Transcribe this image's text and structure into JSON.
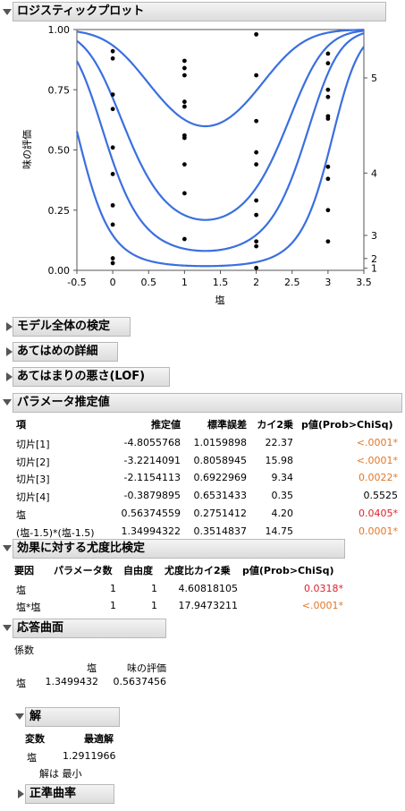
{
  "logistic": {
    "title": "ロジスティックプロット",
    "ylabel": "味の評価",
    "xlabel": "塩"
  },
  "chart_data": {
    "type": "scatter",
    "title": "",
    "xlabel": "塩",
    "ylabel": "味の評価",
    "xlim": [
      -0.5,
      3.5
    ],
    "ylim": [
      0,
      1
    ],
    "x_ticks": [
      "-0.5",
      "0",
      "0.5",
      "1",
      "1.5",
      "2",
      "2.5",
      "3",
      "3.5"
    ],
    "y_ticks": [
      "0.00",
      "0.25",
      "0.50",
      "0.75",
      "1.00"
    ],
    "right_axis_labels": [
      "1",
      "2",
      "3",
      "4",
      "5"
    ],
    "points": [
      {
        "x": 0,
        "y": 0.91
      },
      {
        "x": 0,
        "y": 0.88
      },
      {
        "x": 0,
        "y": 0.73
      },
      {
        "x": 0,
        "y": 0.67
      },
      {
        "x": 0,
        "y": 0.51
      },
      {
        "x": 0,
        "y": 0.4
      },
      {
        "x": 0,
        "y": 0.27
      },
      {
        "x": 0,
        "y": 0.19
      },
      {
        "x": 0,
        "y": 0.05
      },
      {
        "x": 0,
        "y": 0.03
      },
      {
        "x": 1,
        "y": 0.87
      },
      {
        "x": 1,
        "y": 0.84
      },
      {
        "x": 1,
        "y": 0.81
      },
      {
        "x": 1,
        "y": 0.7
      },
      {
        "x": 1,
        "y": 0.68
      },
      {
        "x": 1,
        "y": 0.56
      },
      {
        "x": 1,
        "y": 0.55
      },
      {
        "x": 1,
        "y": 0.44
      },
      {
        "x": 1,
        "y": 0.32
      },
      {
        "x": 1,
        "y": 0.13
      },
      {
        "x": 2,
        "y": 0.98
      },
      {
        "x": 2,
        "y": 0.81
      },
      {
        "x": 2,
        "y": 0.62
      },
      {
        "x": 2,
        "y": 0.49
      },
      {
        "x": 2,
        "y": 0.44
      },
      {
        "x": 2,
        "y": 0.29
      },
      {
        "x": 2,
        "y": 0.23
      },
      {
        "x": 2,
        "y": 0.12
      },
      {
        "x": 2,
        "y": 0.1
      },
      {
        "x": 2,
        "y": 0.01
      },
      {
        "x": 3,
        "y": 0.9
      },
      {
        "x": 3,
        "y": 0.86
      },
      {
        "x": 3,
        "y": 0.75
      },
      {
        "x": 3,
        "y": 0.72
      },
      {
        "x": 3,
        "y": 0.64
      },
      {
        "x": 3,
        "y": 0.63
      },
      {
        "x": 3,
        "y": 0.43
      },
      {
        "x": 3,
        "y": 0.38
      },
      {
        "x": 3,
        "y": 0.25
      },
      {
        "x": 3,
        "y": 0.12
      }
    ],
    "model": {
      "intercepts": [
        -4.8055768,
        -3.2214091,
        -2.1154113,
        -0.3879895
      ],
      "salt": 0.56374559,
      "quadratic": 1.34994322,
      "center": 1.5
    },
    "grid": false,
    "curve_color": "#3a6fe0"
  },
  "collapsed_sections": {
    "model_test": "モデル全体の検定",
    "fit_details": "あてはめの詳細",
    "lof": "あてはまりの悪さ(LOF)"
  },
  "param": {
    "title": "パラメータ推定値",
    "headers": [
      "項",
      "推定値",
      "標準誤差",
      "カイ2乗",
      "p値(Prob>ChiSq)"
    ],
    "rows": [
      {
        "term": "切片[1]",
        "est": "-4.8055768",
        "se": "1.0159898",
        "chi": "22.37",
        "p": "<.0001*",
        "pcolor": "orange"
      },
      {
        "term": "切片[2]",
        "est": "-3.2214091",
        "se": "0.8058945",
        "chi": "15.98",
        "p": "<.0001*",
        "pcolor": "orange"
      },
      {
        "term": "切片[3]",
        "est": "-2.1154113",
        "se": "0.6922969",
        "chi": "9.34",
        "p": "0.0022*",
        "pcolor": "orange"
      },
      {
        "term": "切片[4]",
        "est": "-0.3879895",
        "se": "0.6531433",
        "chi": "0.35",
        "p": "0.5525",
        "pcolor": "black"
      },
      {
        "term": "塩",
        "est": "0.56374559",
        "se": "0.2751412",
        "chi": "4.20",
        "p": "0.0405*",
        "pcolor": "red"
      },
      {
        "term": "(塩-1.5)*(塩-1.5)",
        "est": "1.34994322",
        "se": "0.3514837",
        "chi": "14.75",
        "p": "0.0001*",
        "pcolor": "orange"
      }
    ]
  },
  "lr": {
    "title": "効果に対する尤度比検定",
    "headers": [
      "要因",
      "パラメータ数",
      "自由度",
      "尤度比カイ2乗",
      "p値(Prob>ChiSq)"
    ],
    "rows": [
      {
        "term": "塩",
        "np": "1",
        "df": "1",
        "chi": "4.60818105",
        "p": "0.0318*",
        "pcolor": "red"
      },
      {
        "term": "塩*塩",
        "np": "1",
        "df": "1",
        "chi": "17.9473211",
        "p": "<.0001*",
        "pcolor": "orange"
      }
    ]
  },
  "response": {
    "title": "応答曲面",
    "coef_label": "係数",
    "col1": "塩",
    "col2": "味の評価",
    "row_label": "塩",
    "v1": "1.3499432",
    "v2": "0.5637456"
  },
  "solution": {
    "title": "解",
    "var_header": "変数",
    "opt_header": "最適解",
    "var": "塩",
    "value": "1.2911966",
    "note": "解は 最小"
  },
  "canonical": {
    "title": "正準曲率"
  }
}
